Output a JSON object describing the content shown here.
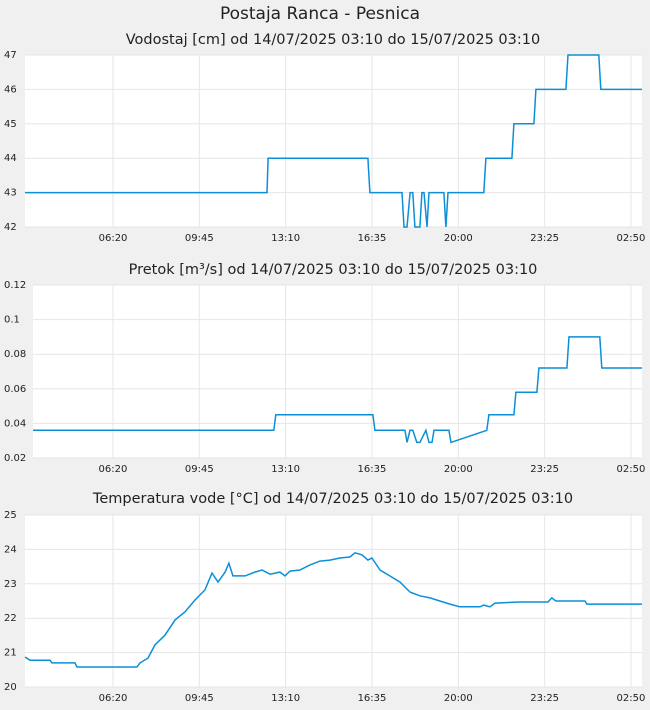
{
  "title": "Postaja Ranca - Pesnica",
  "chart_data": [
    {
      "type": "line",
      "title": "Vodostaj [cm] od 14/07/2025 03:10 do 15/07/2025 03:10",
      "color": "#0a8fd8",
      "grid": true,
      "xlim": [
        2.85,
        27.27
      ],
      "ylim": [
        42,
        47
      ],
      "yticks": [
        42,
        43,
        44,
        45,
        46,
        47
      ],
      "xticks": [
        {
          "value": 6.3333,
          "label": "06:20"
        },
        {
          "value": 9.75,
          "label": "09:45"
        },
        {
          "value": 13.1667,
          "label": "13:10"
        },
        {
          "value": 16.5833,
          "label": "16:35"
        },
        {
          "value": 20,
          "label": "20:00"
        },
        {
          "value": 23.4167,
          "label": "23:25"
        },
        {
          "value": 26.8333,
          "label": "02:50"
        }
      ],
      "x": [
        2.85,
        12.43,
        12.47,
        16.42,
        16.5,
        17.77,
        17.85,
        17.97,
        18.09,
        18.2,
        18.28,
        18.48,
        18.56,
        18.64,
        18.76,
        18.84,
        18.96,
        19.43,
        19.51,
        19.59,
        21.01,
        21.09,
        22.12,
        22.2,
        22.99,
        23.07,
        24.26,
        24.34,
        25.56,
        25.64,
        27.27
      ],
      "values": [
        43,
        43,
        44,
        44,
        43,
        43,
        42,
        42,
        43,
        43,
        42,
        42,
        43,
        43,
        42,
        43,
        43,
        43,
        42,
        43,
        43,
        44,
        44,
        45,
        45,
        46,
        46,
        47,
        47,
        46,
        46
      ]
    },
    {
      "type": "line",
      "title": "Pretok [m³/s] od 14/07/2025 03:10 do 15/07/2025 03:10",
      "color": "#0a8fd8",
      "grid": true,
      "xlim": [
        3.17,
        27.27
      ],
      "ylim": [
        0.02,
        0.12
      ],
      "yticks": [
        0.02,
        0.04,
        0.06,
        0.08,
        0.1,
        0.12
      ],
      "xticks": [
        {
          "value": 6.3333,
          "label": "06:20"
        },
        {
          "value": 9.75,
          "label": "09:45"
        },
        {
          "value": 13.1667,
          "label": "13:10"
        },
        {
          "value": 16.5833,
          "label": "16:35"
        },
        {
          "value": 20,
          "label": "20:00"
        },
        {
          "value": 23.4167,
          "label": "23:25"
        },
        {
          "value": 26.8333,
          "label": "02:50"
        }
      ],
      "x": [
        3.17,
        12.7,
        12.78,
        16.62,
        16.7,
        17.89,
        17.97,
        18.09,
        18.2,
        18.36,
        18.48,
        18.72,
        18.84,
        18.96,
        19.04,
        19.63,
        19.71,
        21.13,
        21.21,
        22.2,
        22.28,
        23.11,
        23.19,
        24.3,
        24.38,
        25.6,
        25.68,
        27.27
      ],
      "values": [
        0.036,
        0.036,
        0.045,
        0.045,
        0.036,
        0.036,
        0.029,
        0.036,
        0.036,
        0.029,
        0.029,
        0.036,
        0.029,
        0.029,
        0.036,
        0.036,
        0.029,
        0.036,
        0.045,
        0.045,
        0.058,
        0.058,
        0.072,
        0.072,
        0.09,
        0.09,
        0.072,
        0.072
      ]
    },
    {
      "type": "line",
      "title": "Temperatura vode [°C] od 14/07/2025 03:10 do 15/07/2025 03:10",
      "color": "#0a8fd8",
      "grid": true,
      "xlim": [
        2.85,
        27.27
      ],
      "ylim": [
        20,
        25
      ],
      "yticks": [
        20,
        21,
        22,
        23,
        24,
        25
      ],
      "xticks": [
        {
          "value": 6.3333,
          "label": "06:20"
        },
        {
          "value": 9.75,
          "label": "09:45"
        },
        {
          "value": 13.1667,
          "label": "13:10"
        },
        {
          "value": 16.5833,
          "label": "16:35"
        },
        {
          "value": 20,
          "label": "20:00"
        },
        {
          "value": 23.4167,
          "label": "23:25"
        },
        {
          "value": 26.8333,
          "label": "02:50"
        }
      ],
      "x": [
        2.85,
        3.05,
        3.84,
        3.92,
        4.83,
        4.91,
        7.28,
        7.4,
        7.72,
        7.99,
        8.39,
        8.79,
        9.18,
        9.58,
        9.97,
        10.25,
        10.49,
        10.77,
        10.92,
        11.08,
        11.56,
        11.95,
        12.23,
        12.55,
        12.94,
        13.14,
        13.34,
        13.73,
        14.13,
        14.52,
        14.92,
        15.31,
        15.71,
        15.91,
        16.19,
        16.42,
        16.58,
        16.9,
        17.29,
        17.69,
        18.09,
        18.48,
        18.88,
        19.27,
        19.67,
        20.06,
        20.86,
        21.01,
        21.25,
        21.45,
        22.44,
        23.55,
        23.7,
        23.86,
        25.01,
        25.09,
        27.27
      ],
      "values": [
        20.87,
        20.78,
        20.78,
        20.7,
        20.7,
        20.58,
        20.58,
        20.7,
        20.84,
        21.22,
        21.51,
        21.95,
        22.18,
        22.53,
        22.82,
        23.31,
        23.05,
        23.34,
        23.6,
        23.23,
        23.23,
        23.34,
        23.4,
        23.28,
        23.34,
        23.23,
        23.37,
        23.4,
        23.55,
        23.66,
        23.69,
        23.75,
        23.78,
        23.9,
        23.84,
        23.69,
        23.75,
        23.4,
        23.23,
        23.05,
        22.76,
        22.65,
        22.59,
        22.5,
        22.41,
        22.33,
        22.33,
        22.38,
        22.33,
        22.44,
        22.47,
        22.47,
        22.59,
        22.5,
        22.5,
        22.41,
        22.41
      ]
    }
  ]
}
